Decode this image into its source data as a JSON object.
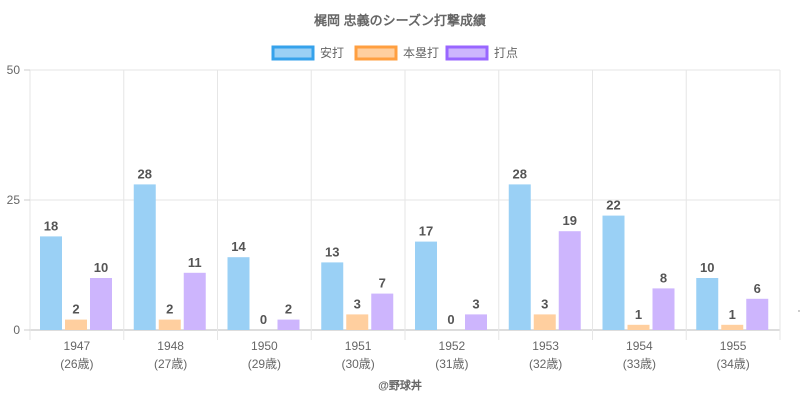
{
  "chart_data": {
    "type": "bar",
    "title": "梶岡 忠義のシーズン打撃成績",
    "categories": [
      "1947",
      "1948",
      "1950",
      "1951",
      "1952",
      "1953",
      "1954",
      "1955"
    ],
    "sublabels": [
      "(26歳)",
      "(27歳)",
      "(29歳)",
      "(30歳)",
      "(31歳)",
      "(32歳)",
      "(33歳)",
      "(34歳)"
    ],
    "series": [
      {
        "name": "安打",
        "values": [
          18,
          28,
          14,
          13,
          17,
          28,
          22,
          10
        ],
        "fill": "#9ad0f5",
        "stroke": "#36a2eb"
      },
      {
        "name": "本塁打",
        "values": [
          2,
          2,
          0,
          3,
          0,
          3,
          1,
          1
        ],
        "fill": "#ffcf9f",
        "stroke": "#ff9f40"
      },
      {
        "name": "打点",
        "values": [
          10,
          11,
          2,
          7,
          3,
          19,
          8,
          6
        ],
        "fill": "#cdb5fd",
        "stroke": "#9966ff"
      }
    ],
    "ylim": [
      0,
      50
    ],
    "yticks": [
      "0",
      "25",
      "50"
    ],
    "legend": "top-center",
    "grid": true,
    "credit": "@野球丼"
  }
}
